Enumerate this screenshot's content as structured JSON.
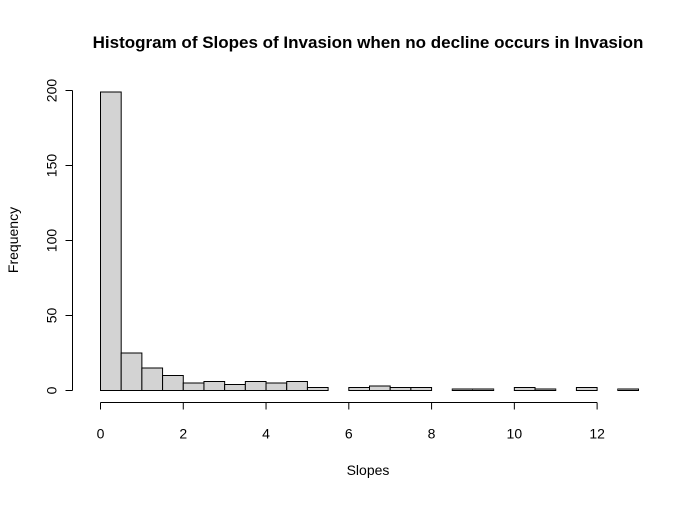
{
  "chart_data": {
    "type": "bar",
    "title": "Histogram of Slopes of Invasion when no decline occurs in Invasion",
    "xlabel": "Slopes",
    "ylabel": "Frequency",
    "bin_width": 0.5,
    "bins": [
      {
        "x0": 0.0,
        "x1": 0.5,
        "count": 199
      },
      {
        "x0": 0.5,
        "x1": 1.0,
        "count": 25
      },
      {
        "x0": 1.0,
        "x1": 1.5,
        "count": 15
      },
      {
        "x0": 1.5,
        "x1": 2.0,
        "count": 10
      },
      {
        "x0": 2.0,
        "x1": 2.5,
        "count": 5
      },
      {
        "x0": 2.5,
        "x1": 3.0,
        "count": 6
      },
      {
        "x0": 3.0,
        "x1": 3.5,
        "count": 4
      },
      {
        "x0": 3.5,
        "x1": 4.0,
        "count": 6
      },
      {
        "x0": 4.0,
        "x1": 4.5,
        "count": 5
      },
      {
        "x0": 4.5,
        "x1": 5.0,
        "count": 6
      },
      {
        "x0": 5.0,
        "x1": 5.5,
        "count": 2
      },
      {
        "x0": 5.5,
        "x1": 6.0,
        "count": 0
      },
      {
        "x0": 6.0,
        "x1": 6.5,
        "count": 2
      },
      {
        "x0": 6.5,
        "x1": 7.0,
        "count": 3
      },
      {
        "x0": 7.0,
        "x1": 7.5,
        "count": 2
      },
      {
        "x0": 7.5,
        "x1": 8.0,
        "count": 2
      },
      {
        "x0": 8.0,
        "x1": 8.5,
        "count": 0
      },
      {
        "x0": 8.5,
        "x1": 9.0,
        "count": 1
      },
      {
        "x0": 9.0,
        "x1": 9.5,
        "count": 1
      },
      {
        "x0": 9.5,
        "x1": 10.0,
        "count": 0
      },
      {
        "x0": 10.0,
        "x1": 10.5,
        "count": 2
      },
      {
        "x0": 10.5,
        "x1": 11.0,
        "count": 1
      },
      {
        "x0": 11.0,
        "x1": 11.5,
        "count": 0
      },
      {
        "x0": 11.5,
        "x1": 12.0,
        "count": 2
      },
      {
        "x0": 12.0,
        "x1": 12.5,
        "count": 0
      },
      {
        "x0": 12.5,
        "x1": 13.0,
        "count": 1
      }
    ],
    "xlim": [
      0,
      13
    ],
    "ylim": [
      0,
      200
    ],
    "x_ticks": [
      0,
      2,
      4,
      6,
      8,
      10,
      12
    ],
    "y_ticks": [
      0,
      50,
      100,
      150,
      200
    ],
    "bar_fill": "#d3d3d3",
    "bar_stroke": "#000000",
    "grid": false,
    "legend": "none"
  }
}
